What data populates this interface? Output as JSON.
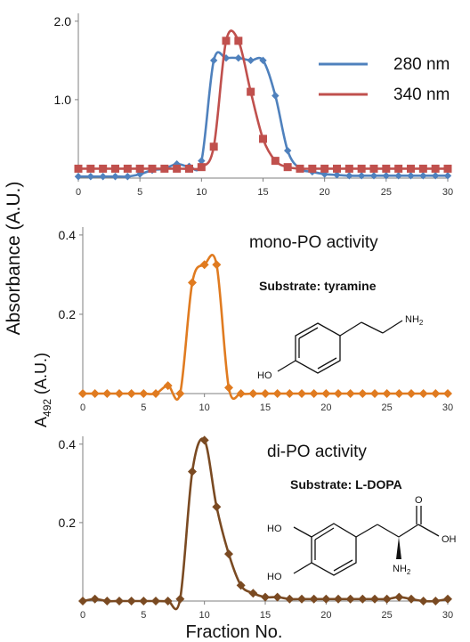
{
  "y_axis_label": "Absorbance (A.U.)",
  "x_axis_label": "Fraction No.",
  "chart_data": [
    {
      "type": "line",
      "xlim": [
        0,
        30
      ],
      "ylim": [
        0,
        2.1
      ],
      "x_ticks": [
        0,
        5,
        10,
        15,
        20,
        25,
        30
      ],
      "y_ticks": [
        1.0,
        2.0
      ],
      "y_tick_labels": [
        "1.0",
        "2.0"
      ],
      "legend_position": "top-right",
      "series": [
        {
          "name": "280 nm",
          "color": "#4f81bd",
          "marker": "diamond",
          "x": [
            0,
            1,
            2,
            3,
            4,
            5,
            6,
            7,
            8,
            9,
            10,
            11,
            12,
            13,
            14,
            15,
            16,
            17,
            18,
            19,
            20,
            21,
            22,
            23,
            24,
            25,
            26,
            27,
            28,
            29,
            30
          ],
          "y": [
            0.02,
            0.02,
            0.02,
            0.02,
            0.02,
            0.05,
            0.1,
            0.12,
            0.18,
            0.15,
            0.22,
            1.5,
            1.53,
            1.53,
            1.5,
            1.5,
            1.05,
            0.35,
            0.12,
            0.08,
            0.05,
            0.04,
            0.03,
            0.03,
            0.03,
            0.03,
            0.03,
            0.03,
            0.03,
            0.03,
            0.03
          ]
        },
        {
          "name": "340 nm",
          "color": "#c0504d",
          "marker": "square",
          "x": [
            0,
            1,
            2,
            3,
            4,
            5,
            6,
            7,
            8,
            9,
            10,
            11,
            12,
            13,
            14,
            15,
            16,
            17,
            18,
            19,
            20,
            21,
            22,
            23,
            24,
            25,
            26,
            27,
            28,
            29,
            30
          ],
          "y": [
            0.12,
            0.12,
            0.12,
            0.12,
            0.12,
            0.12,
            0.12,
            0.12,
            0.12,
            0.12,
            0.14,
            0.4,
            1.75,
            1.75,
            1.1,
            0.5,
            0.22,
            0.14,
            0.12,
            0.12,
            0.12,
            0.12,
            0.12,
            0.12,
            0.12,
            0.12,
            0.12,
            0.12,
            0.12,
            0.12,
            0.12
          ]
        }
      ]
    },
    {
      "type": "line",
      "title": "mono-PO activity",
      "annotation": "Substrate: tyramine",
      "ylabel_main": "A",
      "ylabel_sub": "492",
      "ylabel_rest": " (A.U.)",
      "xlim": [
        0,
        30
      ],
      "ylim": [
        0,
        0.42
      ],
      "x_ticks": [
        0,
        5,
        10,
        15,
        20,
        25,
        30
      ],
      "y_ticks": [
        0.2,
        0.4
      ],
      "y_tick_labels": [
        "0.2",
        "0.4"
      ],
      "series": [
        {
          "color": "#e07b20",
          "marker": "diamond",
          "x": [
            0,
            1,
            2,
            3,
            4,
            5,
            6,
            7,
            8,
            9,
            10,
            11,
            12,
            13,
            14,
            15,
            16,
            17,
            18,
            19,
            20,
            21,
            22,
            23,
            24,
            25,
            26,
            27,
            28,
            29,
            30
          ],
          "y": [
            0,
            0,
            0,
            0,
            0,
            0,
            0,
            0.02,
            0,
            0.28,
            0.325,
            0.325,
            0.015,
            0,
            0,
            0,
            0,
            0,
            0,
            0,
            0,
            0,
            0,
            0,
            0,
            0,
            0,
            0,
            0,
            0,
            0
          ]
        }
      ]
    },
    {
      "type": "line",
      "title": "di-PO activity",
      "annotation": "Substrate: L-DOPA",
      "xlim": [
        0,
        30
      ],
      "ylim": [
        0,
        0.42
      ],
      "x_ticks": [
        0,
        5,
        10,
        15,
        20,
        25,
        30
      ],
      "y_ticks": [
        0.2,
        0.4
      ],
      "y_tick_labels": [
        "0.2",
        "0.4"
      ],
      "series": [
        {
          "color": "#7a4a22",
          "marker": "diamond",
          "x": [
            0,
            1,
            2,
            3,
            4,
            5,
            6,
            7,
            8,
            9,
            10,
            11,
            12,
            13,
            14,
            15,
            16,
            17,
            18,
            19,
            20,
            21,
            22,
            23,
            24,
            25,
            26,
            27,
            28,
            29,
            30
          ],
          "y": [
            0,
            0.005,
            0,
            0,
            0,
            0,
            0,
            0,
            0.005,
            0.33,
            0.41,
            0.24,
            0.12,
            0.04,
            0.02,
            0.01,
            0.01,
            0.005,
            0.005,
            0.005,
            0.005,
            0.005,
            0.005,
            0.005,
            0.005,
            0.005,
            0.01,
            0.005,
            0,
            0,
            0.005
          ]
        }
      ]
    }
  ],
  "structures": {
    "tyramine": {
      "nh2_main": "NH",
      "nh2_sub": "2",
      "oh": "HO"
    },
    "ldopa": {
      "ho_top": "HO",
      "ho_bottom": "HO",
      "oh": "OH",
      "o": "O",
      "nh2_main": "NH",
      "nh2_sub": "2"
    }
  }
}
